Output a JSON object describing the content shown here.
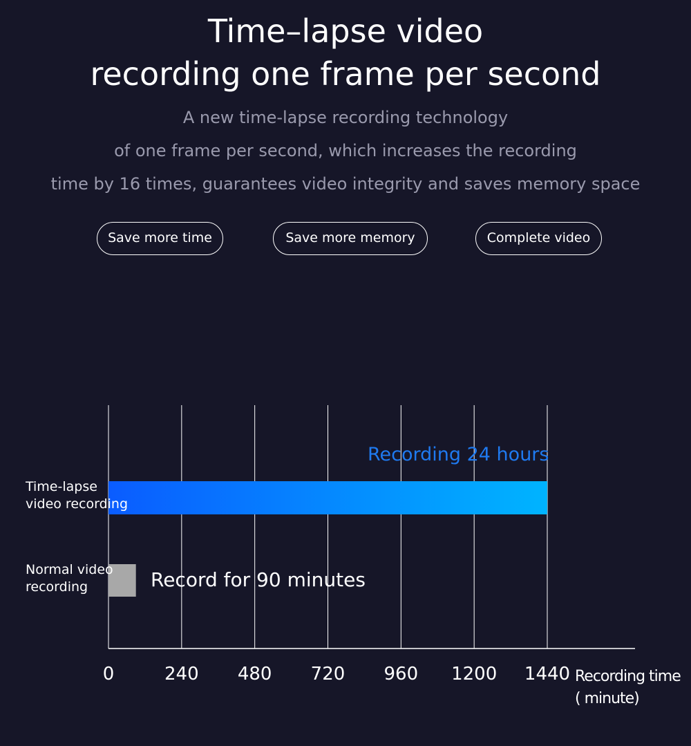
{
  "header": {
    "title_line1": "Time–lapse video",
    "title_line2": "recording one frame per second",
    "subtitle_lines": [
      "A new time-lapse recording technology",
      "of one frame per second, which increases the recording",
      "time by 16 times, guarantees video integrity and saves memory space"
    ]
  },
  "features": [
    "Save more time",
    "Save more memory",
    "Complete video"
  ],
  "chart_data": {
    "type": "bar",
    "orientation": "horizontal",
    "categories": [
      "Time-lapse video recording",
      "Normal video recording"
    ],
    "category_lines": [
      [
        "Time-lapse",
        "video recording"
      ],
      [
        "Normal video",
        "recording"
      ]
    ],
    "values": [
      1440,
      90
    ],
    "colors": [
      "#0a5cff",
      "#00b4ff",
      "#a8a8a8"
    ],
    "annotations": [
      "Recording 24 hours",
      "Record for 90 minutes"
    ],
    "xticks": [
      0,
      240,
      480,
      720,
      960,
      1200,
      1440
    ],
    "xlabel_line1": "Recording time",
    "xlabel_line2": "( minute)",
    "xlim": [
      0,
      1440
    ],
    "grid": true
  }
}
